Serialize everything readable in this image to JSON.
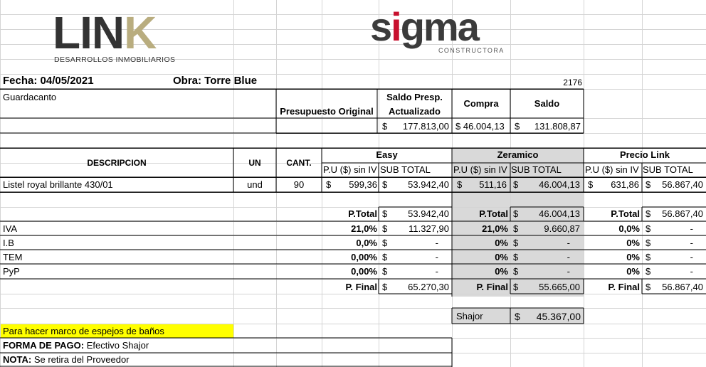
{
  "logos": {
    "link_text": "LINK",
    "link_subtitle": "DESARROLLOS INMOBILIARIOS",
    "sigma_text": "sigma",
    "sigma_subtitle": "CONSTRUCTORA"
  },
  "header": {
    "fecha": "Fecha: 04/05/2021",
    "obra": "Obra: Torre Blue",
    "number": "2176",
    "item": "Guardacanto"
  },
  "summary": {
    "presupuesto_original": "Presupuesto Original",
    "saldo_presp_line1": "Saldo Presp.",
    "saldo_presp_line2": "Actualizado",
    "compra": "Compra",
    "saldo": "Saldo",
    "saldo_presp_value": "177.813,00",
    "compra_value": "$ 46.004,13",
    "saldo_value": "131.808,87",
    "currency": "$"
  },
  "table": {
    "col_descripcion": "DESCRIPCION",
    "col_un": "UN",
    "col_cant": "CANT.",
    "vendors": [
      "Easy",
      "Zeramico",
      "Precio Link"
    ],
    "pu_label": "P.U ($) sin IV",
    "subtotal_label": "SUB TOTAL",
    "row": {
      "descripcion": "Listel royal brillante 430/01",
      "un": "und",
      "cant": "90",
      "easy_pu": "599,36",
      "easy_sub": "53.942,40",
      "zeramico_pu": "511,16",
      "zeramico_sub": "46.004,13",
      "link_pu": "631,86",
      "link_sub": "56.867,40"
    }
  },
  "totals": {
    "ptotal_label": "P.Total",
    "pfinal_label": "P. Final",
    "taxes": [
      "IVA",
      "I.B",
      "TEM",
      "PyP"
    ],
    "easy": {
      "ptotal": "53.942,40",
      "rates": [
        "21,0%",
        "0,0%",
        "0,00%",
        "0,00%"
      ],
      "values": [
        "11.327,90",
        "-",
        "-",
        "-"
      ],
      "pfinal": "65.270,30"
    },
    "zeramico": {
      "ptotal": "46.004,13",
      "rates": [
        "21,0%",
        "0%",
        "0%",
        "0%"
      ],
      "values": [
        "9.660,87",
        "-",
        "-",
        "-"
      ],
      "pfinal": "55.665,00"
    },
    "link": {
      "ptotal": "56.867,40",
      "rates": [
        "0,0%",
        "0%",
        "0%",
        "0%"
      ],
      "values": [
        "-",
        "-",
        "-",
        "-"
      ],
      "pfinal": "56.867,40"
    },
    "shajor_label": "Shajor",
    "shajor_value": "45.367,00"
  },
  "notes": {
    "highlight": "Para hacer marco de espejos de baños",
    "forma_label": "FORMA DE PAGO:",
    "forma_value": " Efectivo Shajor",
    "nota_label": "NOTA:",
    "nota_value": " Se retira del Proveedor"
  },
  "colors": {
    "link_k": "#b9ad7f",
    "sigma_i": "#c8102e",
    "gray_column": "#d9d9d9",
    "highlight": "#ffff00"
  }
}
